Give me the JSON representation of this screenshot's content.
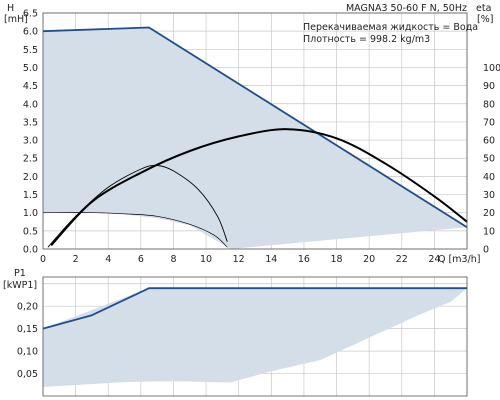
{
  "chart_data": [
    {
      "type": "line",
      "title": "MAGNA3 50-60 F N, 50Hz",
      "annotations": [
        "Перекачиваемая жидкость = Вода",
        "Плотность = 998.2 kg/m3"
      ],
      "y_axis": {
        "label": "H",
        "unit": "[mH]",
        "range": [
          0,
          6.5
        ],
        "ticks": [
          "0.0",
          "0.5",
          "1.0",
          "1.5",
          "2.0",
          "2.5",
          "3.0",
          "3.5",
          "4.0",
          "4.5",
          "5.0",
          "5.5",
          "6.0",
          "6.5"
        ]
      },
      "y2_axis": {
        "label": "eta",
        "unit": "[%]",
        "range": [
          0,
          130
        ],
        "ticks": [
          "0",
          "10",
          "20",
          "30",
          "40",
          "50",
          "60",
          "70",
          "80",
          "90",
          "100"
        ]
      },
      "x_axis": {
        "label": "Q [m3/h]",
        "range": [
          0,
          26
        ],
        "ticks": [
          "0",
          "2",
          "4",
          "6",
          "8",
          "10",
          "12",
          "14",
          "16",
          "18",
          "20",
          "22",
          "24"
        ]
      },
      "grid": true,
      "operating_area": [
        [
          0,
          6.0
        ],
        [
          6.5,
          6.1
        ],
        [
          26,
          0.6
        ],
        [
          11.5,
          0
        ],
        [
          9,
          0.65
        ],
        [
          7,
          0.85
        ],
        [
          5,
          0.95
        ],
        [
          3,
          1.0
        ],
        [
          0,
          1.0
        ]
      ],
      "series": [
        {
          "axis": "H",
          "points": [
            [
              0,
              6.0
            ],
            [
              6.5,
              6.1
            ],
            [
              26,
              0.6
            ]
          ]
        },
        {
          "axis": "eta",
          "points": [
            [
              0.5,
              2
            ],
            [
              3,
              26
            ],
            [
              6,
              42
            ],
            [
              9,
              54
            ],
            [
              12,
              62
            ],
            [
              15,
              66
            ],
            [
              18,
              61
            ],
            [
              21,
              47
            ],
            [
              24,
              29
            ],
            [
              26,
              15
            ]
          ]
        },
        {
          "axis": "eta",
          "points": [
            [
              0.3,
              1
            ],
            [
              2,
              18
            ],
            [
              4,
              34
            ],
            [
              6,
              44
            ],
            [
              7,
              46
            ],
            [
              8,
              43
            ],
            [
              9.5,
              33
            ],
            [
              10.7,
              18
            ],
            [
              11.3,
              4
            ]
          ]
        },
        {
          "axis": "H",
          "points": [
            [
              0,
              1.0
            ],
            [
              3,
              1.0
            ],
            [
              5,
              0.97
            ],
            [
              7,
              0.9
            ],
            [
              9,
              0.68
            ],
            [
              10.5,
              0.38
            ],
            [
              11.3,
              0.05
            ]
          ]
        }
      ]
    },
    {
      "type": "line",
      "y_axis": {
        "label": "P1",
        "unit": "[kWP1]",
        "range": [
          0,
          0.265
        ],
        "ticks": [
          "0,05",
          "0,10",
          "0,15",
          "0,20"
        ]
      },
      "x_axis": {
        "range": [
          0,
          26
        ]
      },
      "grid": true,
      "operating_area": [
        [
          0,
          0.15
        ],
        [
          6.5,
          0.24
        ],
        [
          26,
          0.24
        ],
        [
          25,
          0.21
        ],
        [
          23,
          0.18
        ],
        [
          20,
          0.13
        ],
        [
          17,
          0.08
        ],
        [
          14,
          0.055
        ],
        [
          11.5,
          0.03
        ],
        [
          8,
          0.033
        ],
        [
          5,
          0.031
        ],
        [
          0,
          0.02
        ]
      ],
      "series": [
        {
          "axis": "P1",
          "points": [
            [
              0,
              0.15
            ],
            [
              3,
              0.18
            ],
            [
              6.5,
              0.24
            ],
            [
              26,
              0.24
            ]
          ]
        }
      ]
    }
  ]
}
